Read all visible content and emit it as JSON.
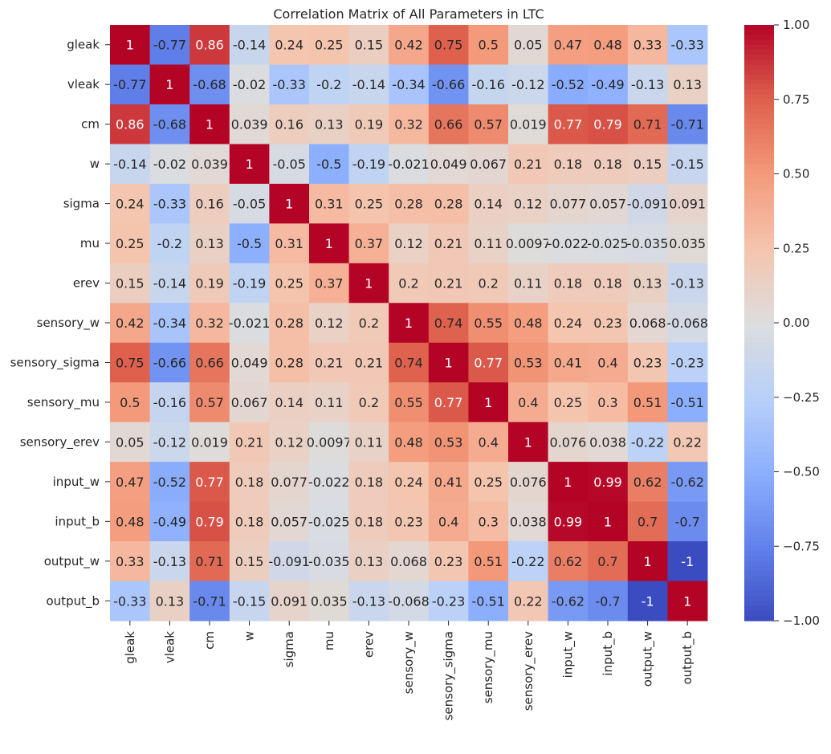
{
  "chart_data": {
    "type": "heatmap",
    "title": "Correlation Matrix of All Parameters in LTC",
    "xlabel": "",
    "ylabel": "",
    "row_labels": [
      "gleak",
      "vleak",
      "cm",
      "w",
      "sigma",
      "mu",
      "erev",
      "sensory_w",
      "sensory_sigma",
      "sensory_mu",
      "sensory_erev",
      "input_w",
      "input_b",
      "output_w",
      "output_b"
    ],
    "col_labels": [
      "gleak",
      "vleak",
      "cm",
      "w",
      "sigma",
      "mu",
      "erev",
      "sensory_w",
      "sensory_sigma",
      "sensory_mu",
      "sensory_erev",
      "input_w",
      "input_b",
      "output_w",
      "output_b"
    ],
    "values": [
      [
        1,
        -0.77,
        0.86,
        -0.14,
        0.24,
        0.25,
        0.15,
        0.42,
        0.75,
        0.5,
        0.05,
        0.47,
        0.48,
        0.33,
        -0.33
      ],
      [
        -0.77,
        1,
        -0.68,
        -0.02,
        -0.33,
        -0.2,
        -0.14,
        -0.34,
        -0.66,
        -0.16,
        -0.12,
        -0.52,
        -0.49,
        -0.13,
        0.13
      ],
      [
        0.86,
        -0.68,
        1,
        0.039,
        0.16,
        0.13,
        0.19,
        0.32,
        0.66,
        0.57,
        0.019,
        0.77,
        0.79,
        0.71,
        -0.71
      ],
      [
        -0.14,
        -0.02,
        0.039,
        1,
        -0.05,
        -0.5,
        -0.19,
        -0.021,
        0.049,
        0.067,
        0.21,
        0.18,
        0.18,
        0.15,
        -0.15
      ],
      [
        0.24,
        -0.33,
        0.16,
        -0.05,
        1,
        0.31,
        0.25,
        0.28,
        0.28,
        0.14,
        0.12,
        0.077,
        0.057,
        -0.091,
        0.091
      ],
      [
        0.25,
        -0.2,
        0.13,
        -0.5,
        0.31,
        1,
        0.37,
        0.12,
        0.21,
        0.11,
        0.0097,
        -0.022,
        -0.025,
        -0.035,
        0.035
      ],
      [
        0.15,
        -0.14,
        0.19,
        -0.19,
        0.25,
        0.37,
        1,
        0.2,
        0.21,
        0.2,
        0.11,
        0.18,
        0.18,
        0.13,
        -0.13
      ],
      [
        0.42,
        -0.34,
        0.32,
        -0.021,
        0.28,
        0.12,
        0.2,
        1,
        0.74,
        0.55,
        0.48,
        0.24,
        0.23,
        0.068,
        -0.068
      ],
      [
        0.75,
        -0.66,
        0.66,
        0.049,
        0.28,
        0.21,
        0.21,
        0.74,
        1,
        0.77,
        0.53,
        0.41,
        0.4,
        0.23,
        -0.23
      ],
      [
        0.5,
        -0.16,
        0.57,
        0.067,
        0.14,
        0.11,
        0.2,
        0.55,
        0.77,
        1,
        0.4,
        0.25,
        0.3,
        0.51,
        -0.51
      ],
      [
        0.05,
        -0.12,
        0.019,
        0.21,
        0.12,
        0.0097,
        0.11,
        0.48,
        0.53,
        0.4,
        1,
        0.076,
        0.038,
        -0.22,
        0.22
      ],
      [
        0.47,
        -0.52,
        0.77,
        0.18,
        0.077,
        -0.022,
        0.18,
        0.24,
        0.41,
        0.25,
        0.076,
        1,
        0.99,
        0.62,
        -0.62
      ],
      [
        0.48,
        -0.49,
        0.79,
        0.18,
        0.057,
        -0.025,
        0.18,
        0.23,
        0.4,
        0.3,
        0.038,
        0.99,
        1,
        0.7,
        -0.7
      ],
      [
        0.33,
        -0.13,
        0.71,
        0.15,
        -0.091,
        -0.035,
        0.13,
        0.068,
        0.23,
        0.51,
        -0.22,
        0.62,
        0.7,
        1,
        -1
      ],
      [
        -0.33,
        0.13,
        -0.71,
        -0.15,
        0.091,
        0.035,
        -0.13,
        -0.068,
        -0.23,
        -0.51,
        0.22,
        -0.62,
        -0.7,
        -1,
        1
      ]
    ],
    "colormap": "coolwarm",
    "vmin": -1,
    "vmax": 1,
    "colorbar_ticks": [
      1.0,
      0.75,
      0.5,
      0.25,
      0.0,
      -0.25,
      -0.5,
      -0.75,
      -1.0
    ],
    "colorbar_tick_labels": [
      "1.00",
      "0.75",
      "0.50",
      "0.25",
      "0.00",
      "−0.25",
      "−0.50",
      "−0.75",
      "−1.00"
    ],
    "annotations": true,
    "colors": {
      "low": "#3b4cc0",
      "mid": "#dddddd",
      "high": "#b40426",
      "text": "#262626"
    }
  }
}
